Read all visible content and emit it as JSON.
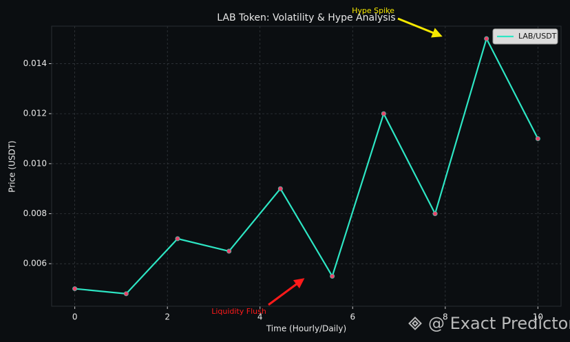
{
  "chart_data": {
    "type": "line",
    "title": "LAB Token: Volatility & Hype Analysis",
    "x_label": "Time (Hourly/Daily)",
    "y_label": "Price (USDT)",
    "x": [
      0,
      1.11,
      2.22,
      3.33,
      4.44,
      5.56,
      6.67,
      7.78,
      8.89,
      10
    ],
    "series": [
      {
        "name": "LAB/USDT",
        "color": "#2de6c4",
        "marker_color": "#e8456b",
        "values": [
          0.005,
          0.0048,
          0.007,
          0.0065,
          0.009,
          0.0055,
          0.012,
          0.008,
          0.015,
          0.011
        ]
      }
    ],
    "xlim": [
      -0.5,
      10.5
    ],
    "xticks": [
      0,
      2,
      4,
      6,
      8,
      10
    ],
    "ylim": [
      0.0043,
      0.0155
    ],
    "yticks": [
      0.006,
      0.008,
      {
        "value": 0.01,
        "label": "0.010"
      },
      0.012,
      0.014
    ],
    "grid": true,
    "legend": "upper right",
    "annotations": [
      {
        "text": "Hype Spike",
        "color": "#f5e800"
      },
      {
        "text": "Liquidity Flush",
        "color": "#ff1a1a"
      }
    ],
    "watermark": "@ Exact Predictor"
  }
}
